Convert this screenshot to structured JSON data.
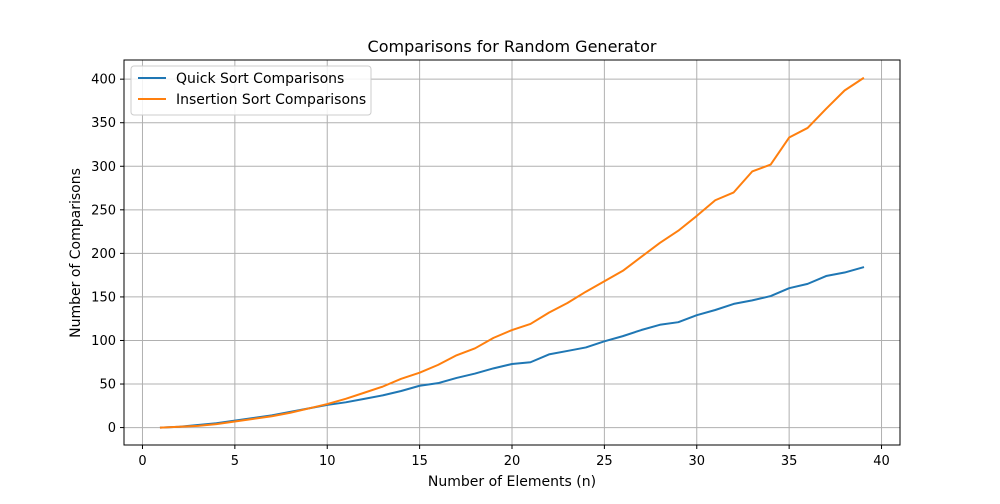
{
  "chart_data": {
    "type": "line",
    "title": "Comparisons for Random Generator",
    "xlabel": "Number of Elements (n)",
    "ylabel": "Number of Comparisons",
    "xlim": [
      -1,
      41
    ],
    "ylim": [
      -20,
      422
    ],
    "xticks": [
      0,
      5,
      10,
      15,
      20,
      25,
      30,
      35,
      40
    ],
    "yticks": [
      0,
      50,
      100,
      150,
      200,
      250,
      300,
      350,
      400
    ],
    "grid": true,
    "legend_position": "top-left",
    "x": [
      1,
      2,
      3,
      4,
      5,
      6,
      7,
      8,
      9,
      10,
      11,
      12,
      13,
      14,
      15,
      16,
      17,
      18,
      19,
      20,
      21,
      22,
      23,
      24,
      25,
      26,
      27,
      28,
      29,
      30,
      31,
      32,
      33,
      34,
      35,
      36,
      37,
      38,
      39
    ],
    "series": [
      {
        "name": "Quick Sort Comparisons",
        "color": "#1f77b4",
        "values": [
          0,
          1,
          3,
          5,
          8,
          11,
          14,
          18,
          22,
          26,
          29,
          33,
          37,
          42,
          48,
          51,
          57,
          62,
          68,
          73,
          75,
          84,
          88,
          92,
          99,
          105,
          112,
          118,
          121,
          129,
          135,
          142,
          146,
          151,
          160,
          165,
          174,
          178,
          184
        ]
      },
      {
        "name": "Insertion Sort Comparisons",
        "color": "#ff7f0e",
        "values": [
          0,
          1,
          2,
          4,
          7,
          10,
          13,
          17,
          22,
          27,
          33,
          40,
          47,
          56,
          63,
          72,
          83,
          91,
          103,
          112,
          119,
          132,
          143,
          156,
          168,
          180,
          196,
          212,
          226,
          243,
          261,
          270,
          294,
          302,
          333,
          344,
          366,
          387,
          401
        ]
      }
    ]
  }
}
